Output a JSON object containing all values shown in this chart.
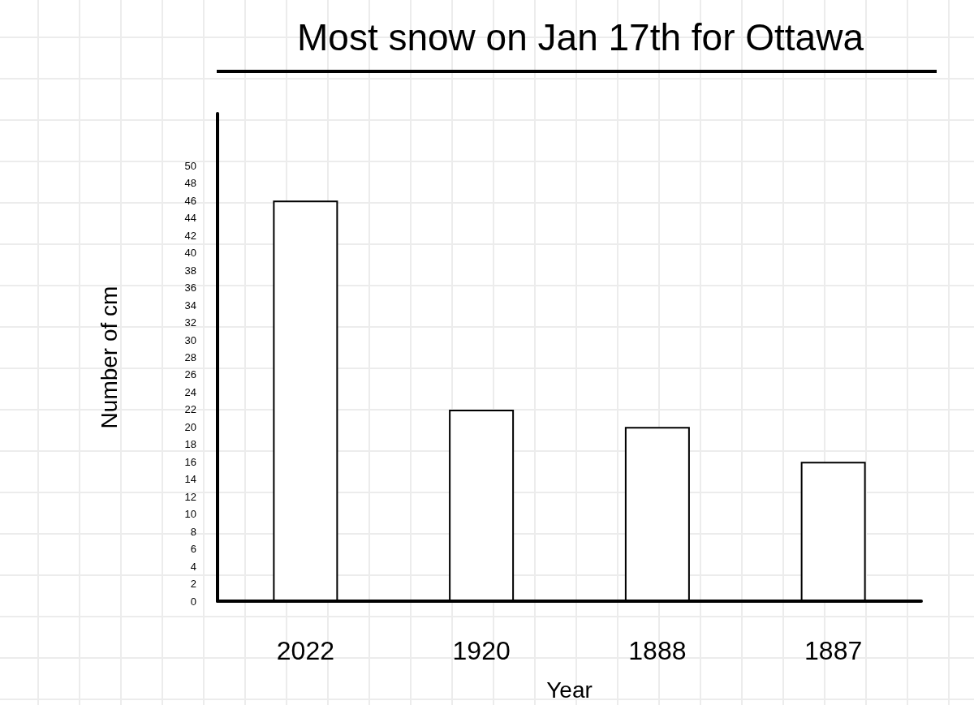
{
  "chart_data": {
    "type": "bar",
    "title": "Most snow on Jan 17th for Ottawa",
    "xlabel": "Year",
    "ylabel": "Number of cm",
    "categories": [
      "2022",
      "1920",
      "1888",
      "1887"
    ],
    "values": [
      46,
      22,
      20,
      16
    ],
    "color": "#ffffff",
    "ylim": [
      0,
      56
    ],
    "yticks": [
      0,
      2,
      4,
      6,
      8,
      10,
      12,
      14,
      16,
      18,
      20,
      22,
      24,
      26,
      28,
      30,
      32,
      34,
      36,
      38,
      40,
      42,
      44,
      46,
      48,
      50
    ],
    "grid": false
  }
}
